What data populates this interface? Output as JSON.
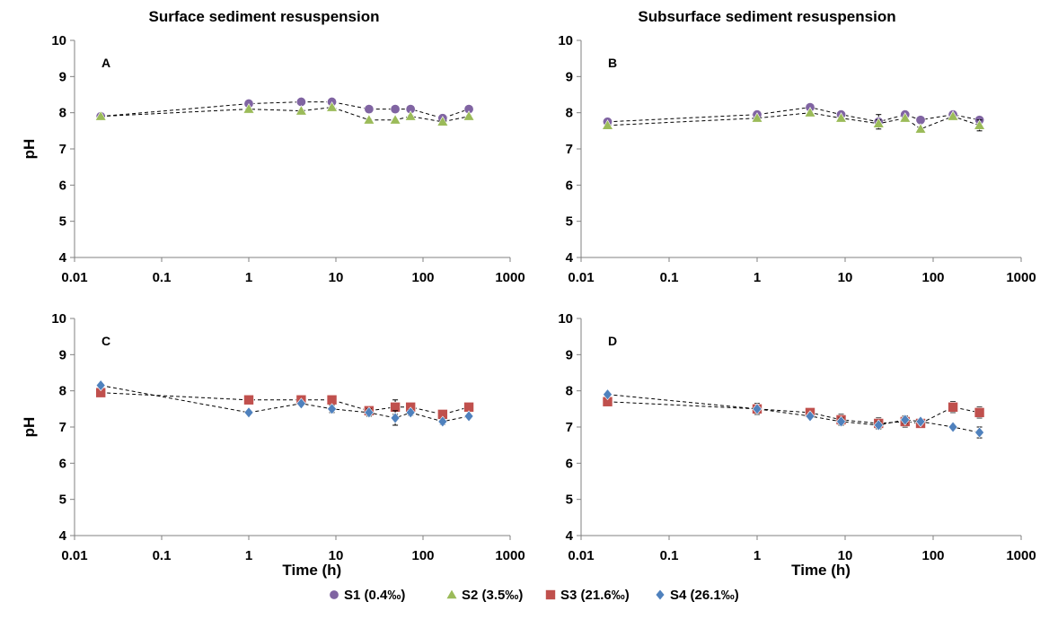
{
  "figure": {
    "titles": [
      "Surface sediment resuspension",
      "Subsurface sediment resuspension"
    ],
    "legend_position": "bottom"
  },
  "chart_data": [
    {
      "type": "scatter",
      "panel": "A",
      "title": "Surface sediment resuspension",
      "xlabel": "",
      "ylabel": "pH",
      "xscale": "log",
      "xlim": [
        0.01,
        1000
      ],
      "ylim": [
        4,
        10
      ],
      "xticks": [
        "0.01",
        "0.1",
        "1",
        "10",
        "100",
        "1000"
      ],
      "yticks": [
        "4",
        "5",
        "6",
        "7",
        "8",
        "9",
        "10"
      ],
      "grid": false,
      "series": [
        {
          "name": "S1 (0.4‰)",
          "marker": "circle",
          "color": "#8064a2",
          "x": [
            0.02,
            1,
            4,
            9,
            24,
            48,
            72,
            168,
            336
          ],
          "y": [
            7.9,
            8.25,
            8.3,
            8.3,
            8.1,
            8.1,
            8.1,
            7.85,
            8.1
          ],
          "err": [
            0.03,
            0.03,
            0.03,
            0.03,
            0.1,
            0.03,
            0.03,
            0.03,
            0.03
          ]
        },
        {
          "name": "S2 (3.5‰)",
          "marker": "triangle",
          "color": "#9bbb59",
          "x": [
            0.02,
            1,
            4,
            9,
            24,
            48,
            72,
            168,
            336
          ],
          "y": [
            7.9,
            8.1,
            8.05,
            8.15,
            7.8,
            7.8,
            7.9,
            7.75,
            7.9
          ],
          "err": [
            0.03,
            0.03,
            0.03,
            0.03,
            0.03,
            0.03,
            0.03,
            0.03,
            0.03
          ]
        }
      ]
    },
    {
      "type": "scatter",
      "panel": "B",
      "title": "Subsurface sediment resuspension",
      "xlabel": "",
      "ylabel": "",
      "xscale": "log",
      "xlim": [
        0.01,
        1000
      ],
      "ylim": [
        4,
        10
      ],
      "xticks": [
        "0.01",
        "0.1",
        "1",
        "10",
        "100",
        "1000"
      ],
      "yticks": [
        "4",
        "5",
        "6",
        "7",
        "8",
        "9",
        "10"
      ],
      "grid": false,
      "series": [
        {
          "name": "S1 (0.4‰)",
          "marker": "circle",
          "color": "#8064a2",
          "x": [
            0.02,
            1,
            4,
            9,
            24,
            48,
            72,
            168,
            336
          ],
          "y": [
            7.75,
            7.95,
            8.15,
            7.95,
            7.75,
            7.95,
            7.8,
            7.95,
            7.8
          ],
          "err": [
            0.03,
            0.03,
            0.03,
            0.03,
            0.2,
            0.03,
            0.03,
            0.03,
            0.1
          ]
        },
        {
          "name": "S2 (3.5‰)",
          "marker": "triangle",
          "color": "#9bbb59",
          "x": [
            0.02,
            1,
            4,
            9,
            24,
            48,
            72,
            168,
            336
          ],
          "y": [
            7.65,
            7.85,
            8.0,
            7.85,
            7.7,
            7.85,
            7.55,
            7.9,
            7.65
          ],
          "err": [
            0.03,
            0.03,
            0.03,
            0.03,
            0.1,
            0.03,
            0.03,
            0.03,
            0.15
          ]
        }
      ]
    },
    {
      "type": "scatter",
      "panel": "C",
      "title": "",
      "xlabel": "Time (h)",
      "ylabel": "pH",
      "xscale": "log",
      "xlim": [
        0.01,
        1000
      ],
      "ylim": [
        4,
        10
      ],
      "xticks": [
        "0.01",
        "0.1",
        "1",
        "10",
        "100",
        "1000"
      ],
      "yticks": [
        "4",
        "5",
        "6",
        "7",
        "8",
        "9",
        "10"
      ],
      "grid": false,
      "series": [
        {
          "name": "S3 (21.6‰)",
          "marker": "square",
          "color": "#c0504d",
          "x": [
            0.02,
            1,
            4,
            9,
            24,
            48,
            72,
            168,
            336
          ],
          "y": [
            7.95,
            7.75,
            7.75,
            7.75,
            7.45,
            7.55,
            7.55,
            7.35,
            7.55
          ],
          "err": [
            0.03,
            0.03,
            0.05,
            0.1,
            0.1,
            0.2,
            0.08,
            0.1,
            0.05
          ]
        },
        {
          "name": "S4 (26.1‰)",
          "marker": "diamond",
          "color": "#4f81bd",
          "x": [
            0.02,
            1,
            4,
            9,
            24,
            48,
            72,
            168,
            336
          ],
          "y": [
            8.15,
            7.4,
            7.65,
            7.5,
            7.4,
            7.25,
            7.4,
            7.15,
            7.3
          ],
          "err": [
            0.03,
            0.03,
            0.03,
            0.1,
            0.1,
            0.2,
            0.08,
            0.08,
            0.05
          ]
        }
      ]
    },
    {
      "type": "scatter",
      "panel": "D",
      "title": "",
      "xlabel": "Time (h)",
      "ylabel": "",
      "xscale": "log",
      "xlim": [
        0.01,
        1000
      ],
      "ylim": [
        4,
        10
      ],
      "xticks": [
        "0.01",
        "0.1",
        "1",
        "10",
        "100",
        "1000"
      ],
      "yticks": [
        "4",
        "5",
        "6",
        "7",
        "8",
        "9",
        "10"
      ],
      "grid": false,
      "series": [
        {
          "name": "S3 (21.6‰)",
          "marker": "square",
          "color": "#c0504d",
          "x": [
            0.02,
            1,
            4,
            9,
            24,
            48,
            72,
            168,
            336
          ],
          "y": [
            7.7,
            7.5,
            7.4,
            7.2,
            7.1,
            7.15,
            7.1,
            7.55,
            7.4
          ],
          "err": [
            0.03,
            0.15,
            0.05,
            0.15,
            0.15,
            0.15,
            0.05,
            0.15,
            0.15
          ]
        },
        {
          "name": "S4 (26.1‰)",
          "marker": "diamond",
          "color": "#4f81bd",
          "x": [
            0.02,
            1,
            4,
            9,
            24,
            48,
            72,
            168,
            336
          ],
          "y": [
            7.9,
            7.5,
            7.3,
            7.15,
            7.05,
            7.2,
            7.15,
            7.0,
            6.85
          ],
          "err": [
            0.03,
            0.03,
            0.03,
            0.1,
            0.1,
            0.1,
            0.05,
            0.05,
            0.15
          ]
        }
      ]
    }
  ],
  "legend": [
    {
      "name": "S1 (0.4‰)",
      "marker": "circle",
      "color": "#8064a2"
    },
    {
      "name": "S2 (3.5‰)",
      "marker": "triangle",
      "color": "#9bbb59"
    },
    {
      "name": "S3 (21.6‰)",
      "marker": "square",
      "color": "#c0504d"
    },
    {
      "name": "S4 (26.1‰)",
      "marker": "diamond",
      "color": "#4f81bd"
    }
  ]
}
